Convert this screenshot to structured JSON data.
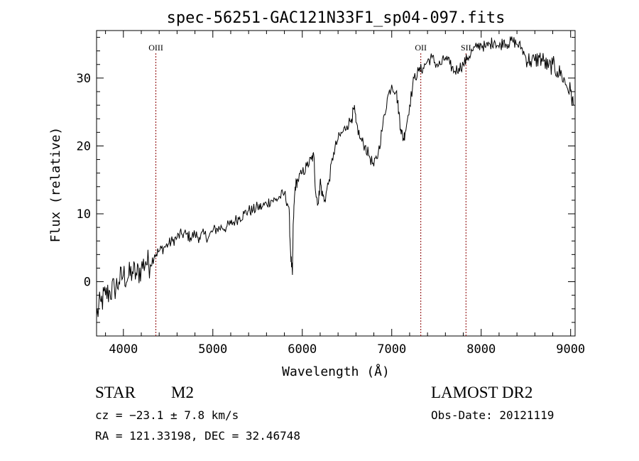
{
  "chart_data": {
    "type": "line",
    "title": "spec-56251-GAC121N33F1_sp04-097.fits",
    "xlabel": "Wavelength (Å)",
    "ylabel": "Flux (relative)",
    "xlim": [
      3700,
      9050
    ],
    "ylim": [
      -8,
      37
    ],
    "x_ticks": [
      4000,
      5000,
      6000,
      7000,
      8000,
      9000
    ],
    "x_tick_labels": [
      "4000",
      "5000",
      "6000",
      "7000",
      "8000",
      "9000"
    ],
    "y_ticks": [
      0,
      10,
      20,
      30
    ],
    "y_tick_labels": [
      "0",
      "10",
      "20",
      "30"
    ],
    "grid": false,
    "series": [
      {
        "x": [
          3700,
          3750,
          3800,
          3850,
          3900,
          3950,
          4000,
          4050,
          4100,
          4150,
          4200,
          4250,
          4300,
          4350,
          4400,
          4450,
          4500,
          4550,
          4600,
          4650,
          4700,
          4750,
          4800,
          4850,
          4900,
          4950,
          5000,
          5050,
          5100,
          5150,
          5200,
          5250,
          5300,
          5350,
          5400,
          5450,
          5500,
          5550,
          5600,
          5650,
          5700,
          5750,
          5800,
          5850,
          5870,
          5890,
          5900,
          5920,
          5950,
          6000,
          6050,
          6100,
          6130,
          6150,
          6180,
          6200,
          6220,
          6250,
          6300,
          6350,
          6400,
          6450,
          6500,
          6550,
          6580,
          6600,
          6650,
          6700,
          6750,
          6800,
          6850,
          6900,
          6950,
          7000,
          7050,
          7080,
          7100,
          7130,
          7150,
          7200,
          7250,
          7300,
          7350,
          7400,
          7450,
          7500,
          7550,
          7600,
          7650,
          7700,
          7750,
          7800,
          7850,
          7900,
          7950,
          8000,
          8050,
          8100,
          8150,
          8200,
          8250,
          8300,
          8350,
          8400,
          8450,
          8500,
          8550,
          8600,
          8650,
          8700,
          8750,
          8800,
          8850,
          8900,
          8950,
          9000,
          9030
        ],
        "values": [
          -5,
          -3,
          -2,
          -1.5,
          -1,
          0,
          1,
          0.5,
          1.5,
          1,
          2,
          3,
          2.5,
          4,
          4.5,
          5,
          5.5,
          6,
          6.5,
          7,
          7,
          6.5,
          7,
          6.5,
          7,
          6.5,
          7.5,
          7.8,
          8,
          8,
          8.5,
          9,
          9.5,
          10,
          10.5,
          10.5,
          11,
          11,
          11.5,
          12,
          12,
          12.5,
          13,
          11,
          4,
          1,
          9,
          14,
          15,
          16,
          17,
          18,
          18.5,
          13,
          11.5,
          15,
          13,
          12,
          15,
          19,
          21,
          22,
          23,
          24,
          25.5,
          23.5,
          21,
          20,
          18.5,
          17,
          19,
          23,
          27,
          29,
          28,
          25,
          22.5,
          21,
          22,
          26,
          30,
          31,
          31.5,
          32.5,
          33,
          32,
          32,
          33,
          32,
          31,
          31.5,
          32,
          33,
          34,
          34.5,
          35,
          34.5,
          35,
          35.5,
          34.5,
          35.5,
          35,
          35.5,
          35,
          34.5,
          33,
          32.5,
          32.5,
          33,
          32.5,
          31.5,
          32,
          31,
          30.5,
          29,
          28,
          26
        ]
      }
    ],
    "line_markers": [
      {
        "label": "OIII",
        "x": 4363
      },
      {
        "label": "OII",
        "x": 7325
      },
      {
        "label": "SII",
        "x": 7830
      }
    ],
    "marker_color": "#8b0000",
    "line_color": "#000000",
    "annotations": {
      "object_class": "STAR",
      "subclass": "M2",
      "survey": "LAMOST DR2",
      "redshift": "cz = −23.1 ± 7.8 km/s",
      "obs_date": "Obs-Date: 20121119",
      "coords": "RA = 121.33198, DEC =  32.46748"
    }
  }
}
